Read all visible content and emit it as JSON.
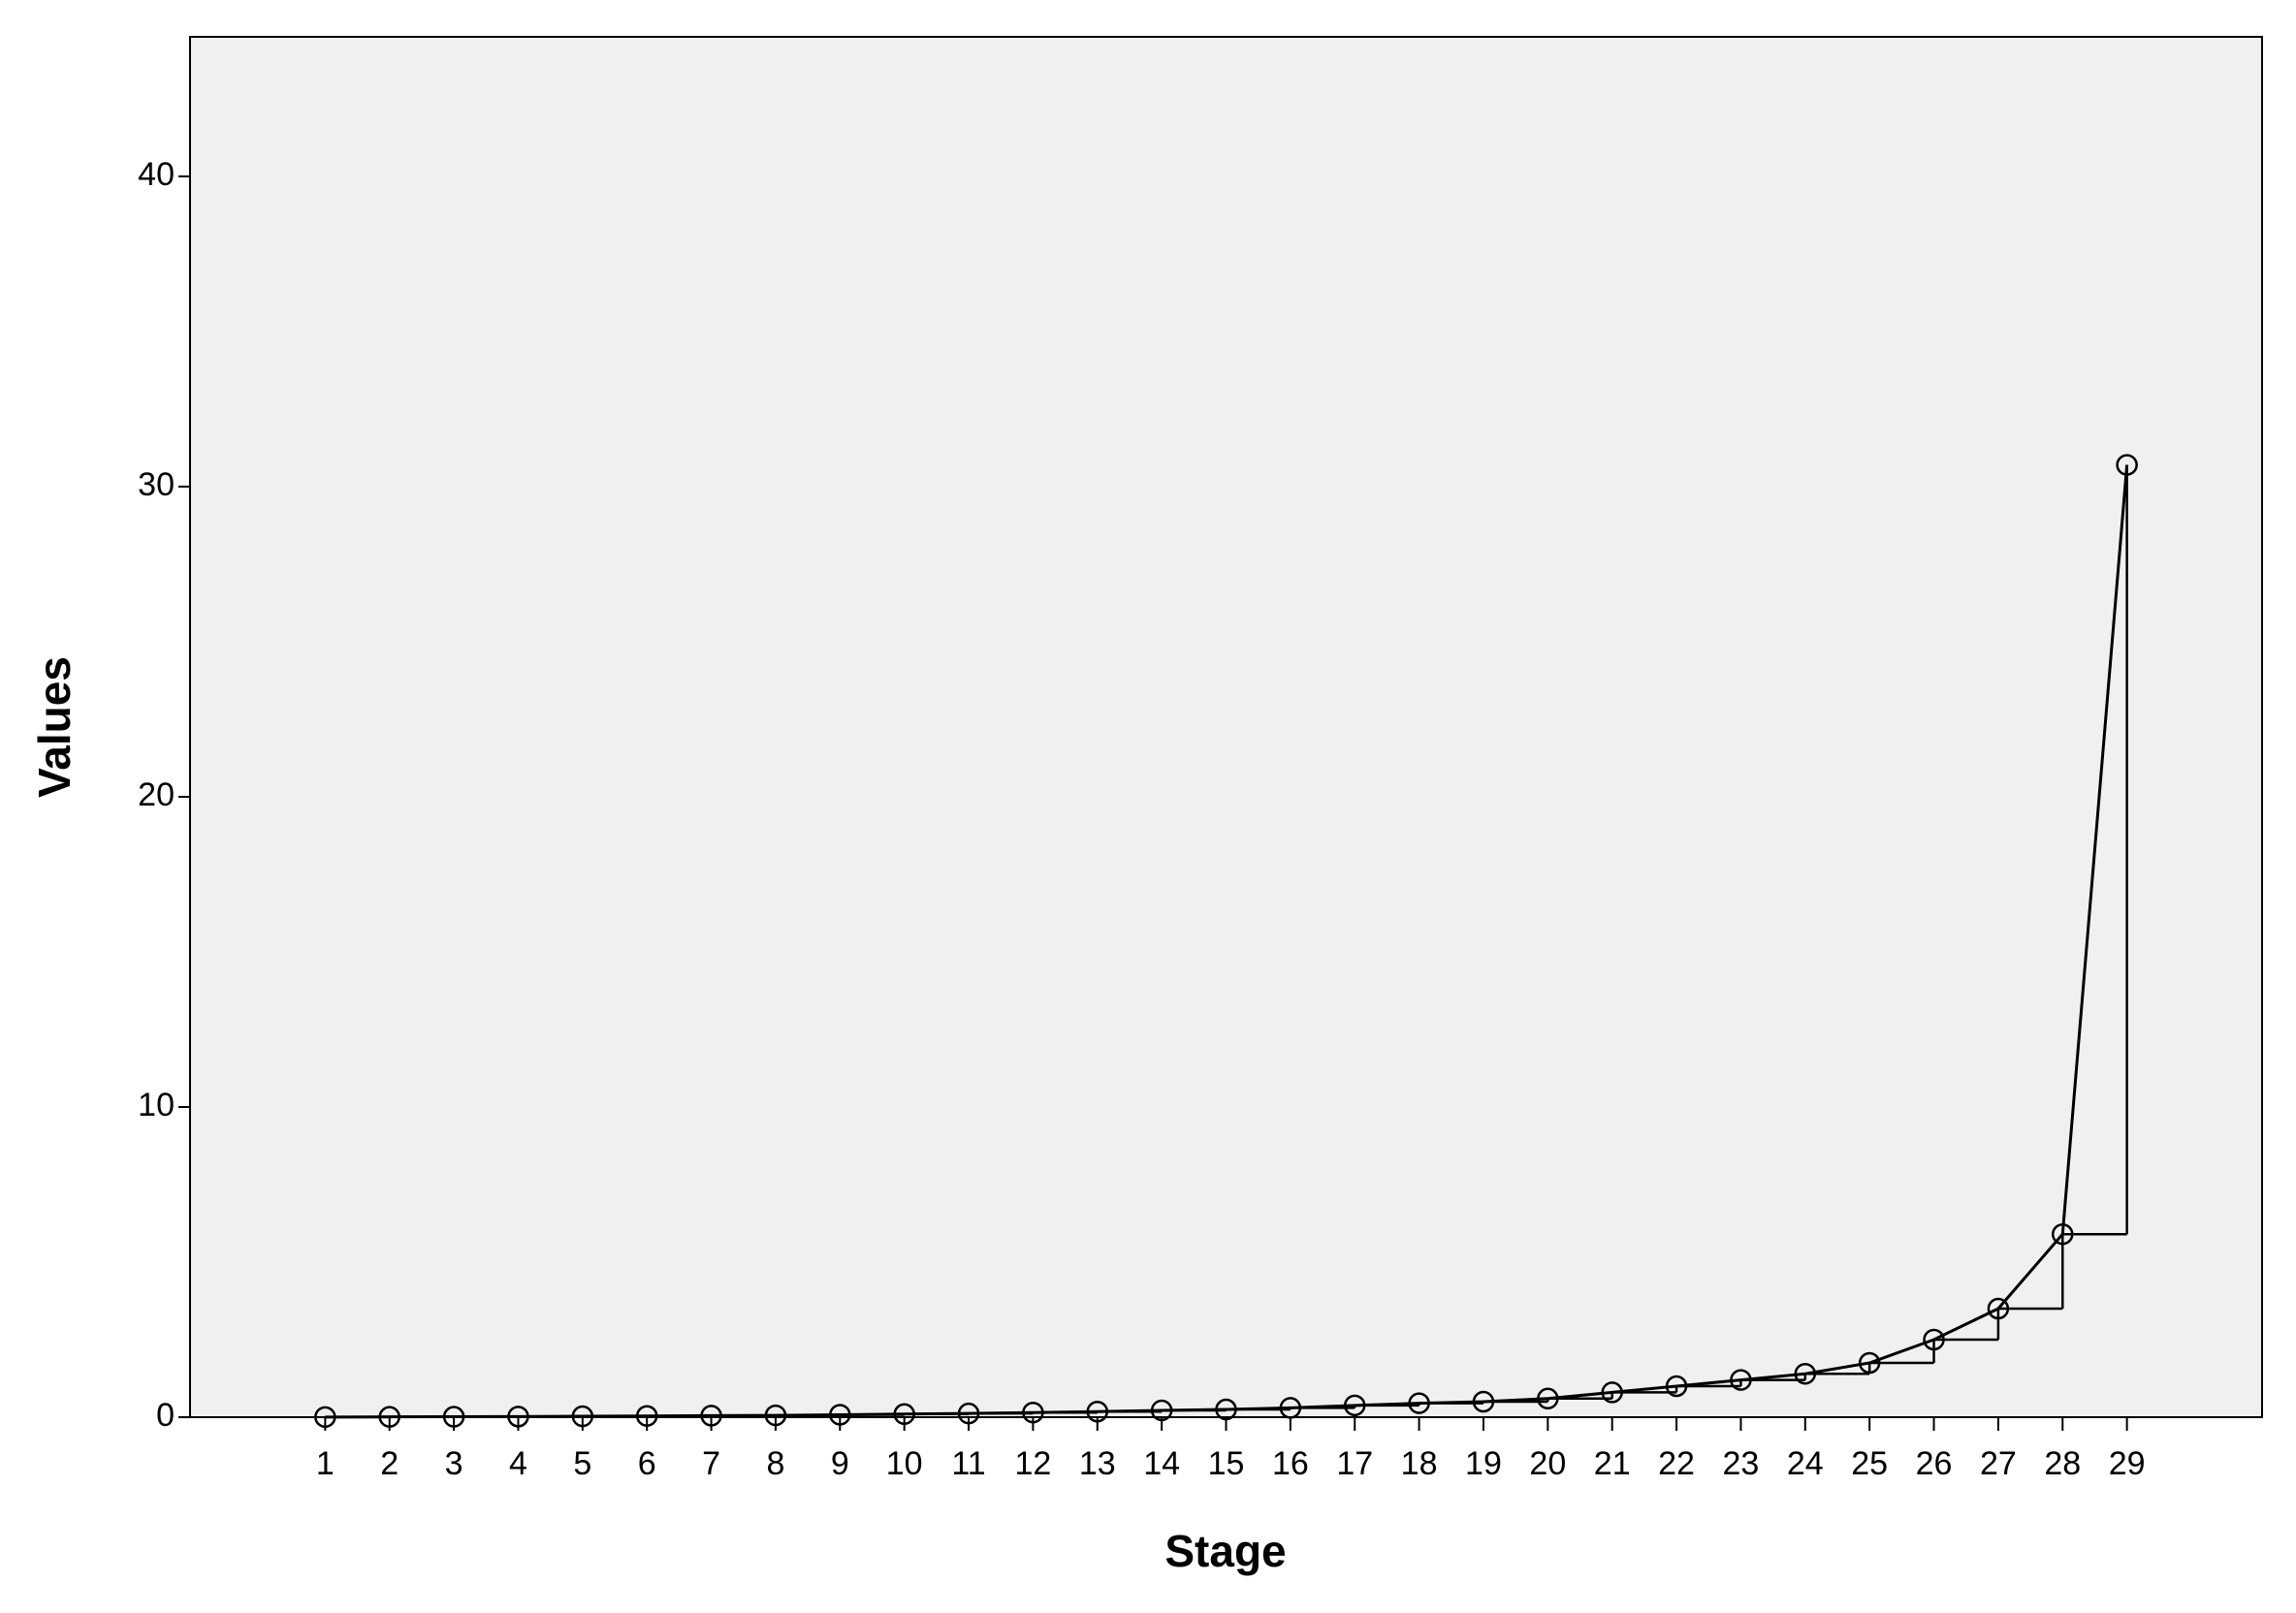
{
  "chart_data": {
    "type": "line",
    "x_label": "Stage",
    "y_label": "Values",
    "x": [
      1,
      2,
      3,
      4,
      5,
      6,
      7,
      8,
      9,
      10,
      11,
      12,
      13,
      14,
      15,
      16,
      17,
      18,
      19,
      20,
      21,
      22,
      23,
      24,
      25,
      26,
      27,
      28,
      29
    ],
    "values": [
      0.005,
      0.01,
      0.015,
      0.02,
      0.03,
      0.04,
      0.05,
      0.06,
      0.08,
      0.1,
      0.12,
      0.15,
      0.18,
      0.22,
      0.25,
      0.3,
      0.38,
      0.45,
      0.5,
      0.6,
      0.8,
      1.0,
      1.2,
      1.4,
      1.75,
      2.5,
      3.5,
      5.9,
      30.7
    ],
    "color": "#000000",
    "background": "#f0f0f0",
    "step_line": true,
    "markers": "circle",
    "xlim": [
      -1.1,
      31.1
    ],
    "xticks": [
      1,
      2,
      3,
      4,
      5,
      6,
      7,
      8,
      9,
      10,
      11,
      12,
      13,
      14,
      15,
      16,
      17,
      18,
      19,
      20,
      21,
      22,
      23,
      24,
      25,
      26,
      27,
      28,
      29
    ],
    "ylim": [
      0,
      44.5
    ],
    "yticks": [
      0,
      10,
      20,
      30,
      40
    ],
    "grid": false
  }
}
